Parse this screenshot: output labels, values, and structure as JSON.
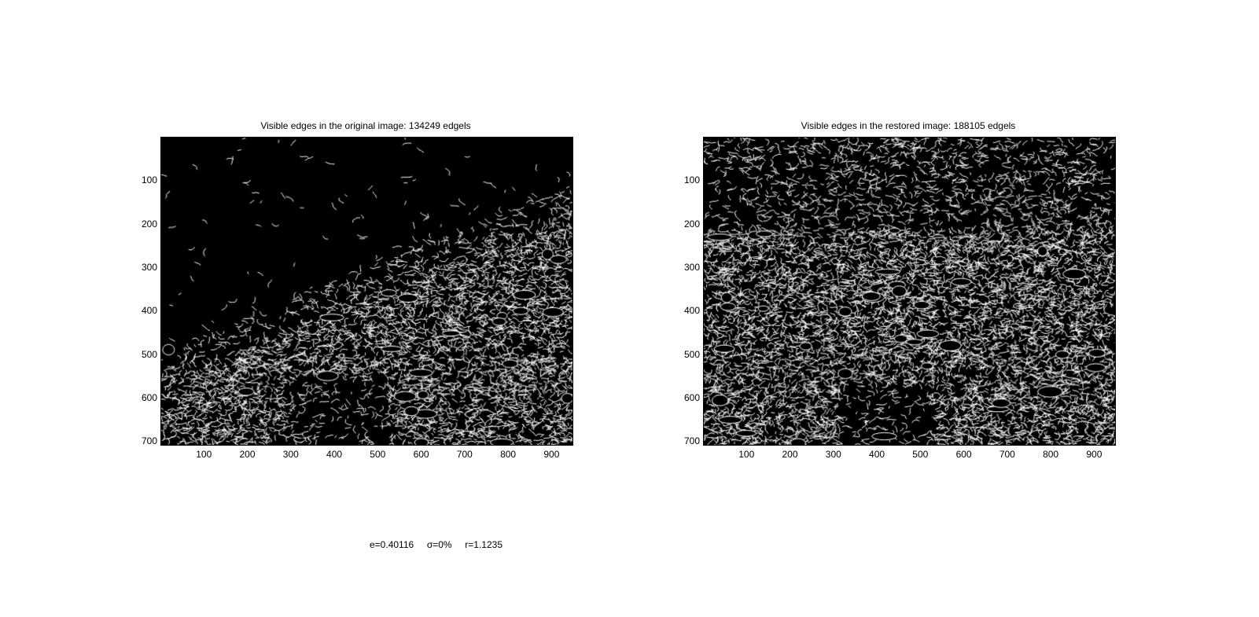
{
  "panels": [
    {
      "title": "Visible edges in the original image: 134249 edgels",
      "y_ticks": [
        "100",
        "200",
        "300",
        "400",
        "500",
        "600",
        "700"
      ],
      "x_ticks": [
        "100",
        "200",
        "300",
        "400",
        "500",
        "600",
        "700",
        "800",
        "900"
      ],
      "image_kind": "edge-map-original"
    },
    {
      "title": "Visible edges in the restored image: 188105 edgels",
      "y_ticks": [
        "100",
        "200",
        "300",
        "400",
        "500",
        "600",
        "700"
      ],
      "x_ticks": [
        "100",
        "200",
        "300",
        "400",
        "500",
        "600",
        "700",
        "800",
        "900"
      ],
      "image_kind": "edge-map-restored"
    }
  ],
  "footer": {
    "e": "e=0.40116",
    "sigma": "σ=0%",
    "r": "r=1.1235"
  },
  "colors": {
    "background": "#ffffff",
    "image_background": "#000000",
    "edge": "#ffffff"
  }
}
